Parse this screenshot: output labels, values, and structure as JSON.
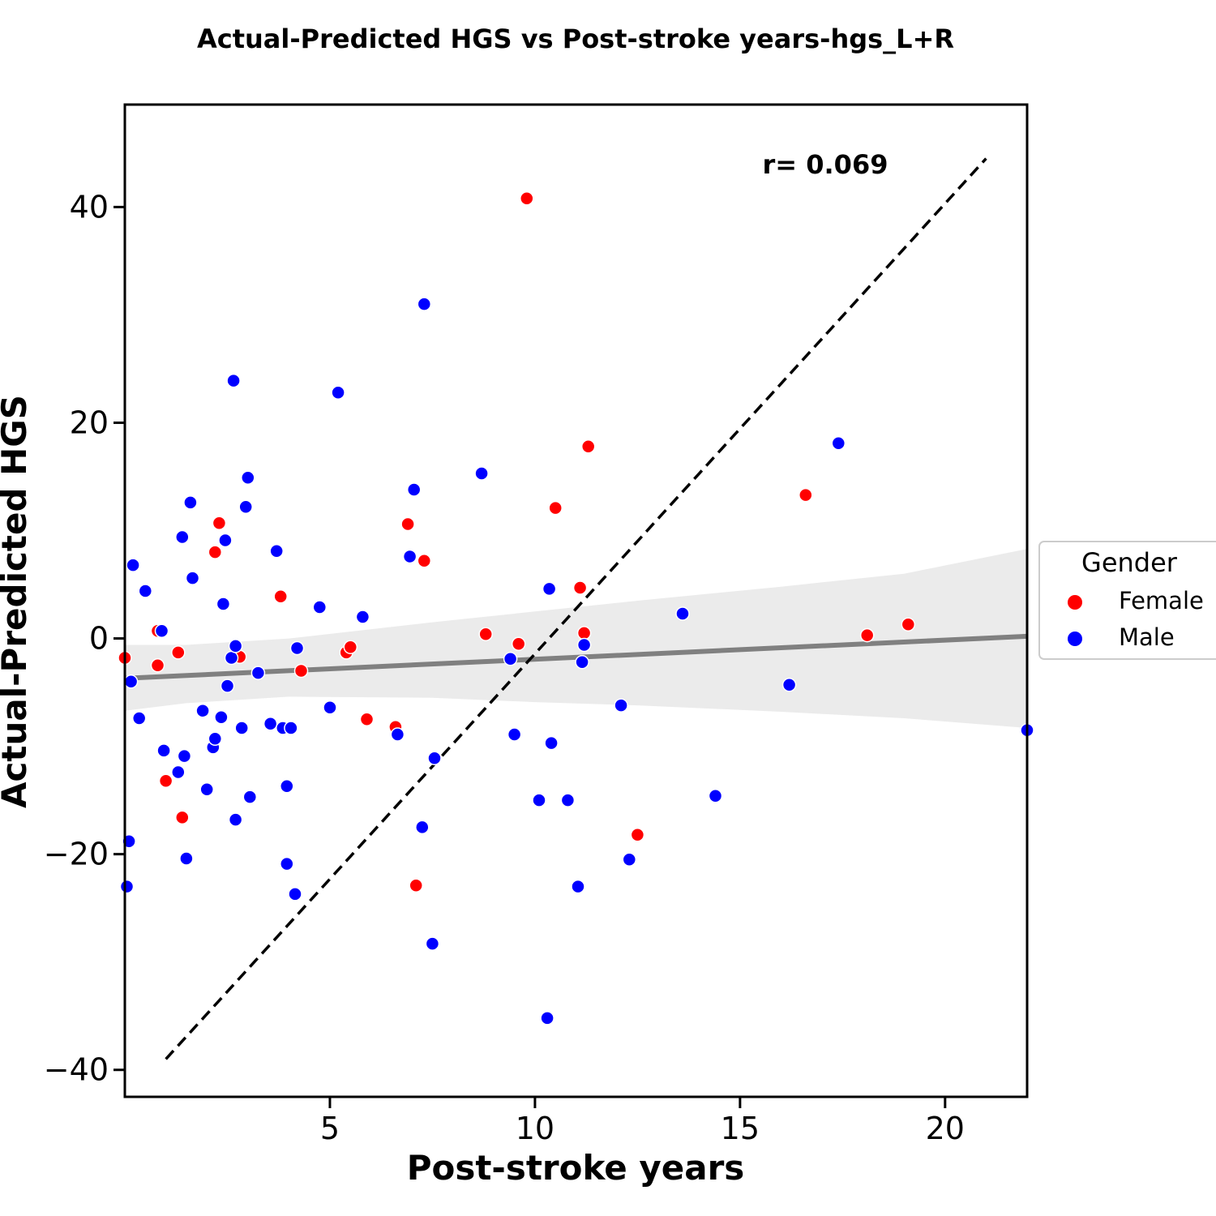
{
  "chart_data": {
    "type": "scatter",
    "title": "Actual-Predicted HGS vs Post-stroke years-hgs_L+R",
    "xlabel": "Post-stroke years",
    "ylabel": "Actual-Predicted HGS",
    "xlim": [
      0.0,
      22.0
    ],
    "ylim": [
      -42.5,
      49.5
    ],
    "xticks": [
      5,
      10,
      15,
      20
    ],
    "yticks": [
      -40,
      -20,
      0,
      20,
      40
    ],
    "ytick_labels": [
      "−40",
      "−20",
      "0",
      "20",
      "40"
    ],
    "xtick_labels": [
      "5",
      "10",
      "15",
      "20"
    ],
    "grid": false,
    "annotation": "r= 0.069",
    "legend": {
      "title": "Gender",
      "position": "right",
      "entries": [
        {
          "name": "Female",
          "color": "#ff0000"
        },
        {
          "name": "Male",
          "color": "#0000ff"
        }
      ]
    },
    "identity_line": {
      "x": [
        1.0,
        21.0
      ],
      "y": [
        -39.0,
        44.5
      ]
    },
    "regression": {
      "x": [
        0.0,
        22.0
      ],
      "y": [
        -3.7,
        0.2
      ],
      "ci_upper": [
        -0.6,
        -0.6,
        0.0,
        1.5,
        2.5,
        3.5,
        4.8,
        6.0,
        8.3
      ],
      "ci_lower": [
        -6.7,
        -6.0,
        -5.4,
        -5.5,
        -5.9,
        -6.2,
        -6.8,
        -7.4,
        -8.3
      ],
      "ci_x": [
        0.0,
        1.5,
        4.0,
        7.5,
        10.0,
        12.5,
        16.0,
        19.0,
        22.0
      ]
    },
    "series": [
      {
        "name": "Female",
        "color": "#ff0000",
        "points": [
          [
            0.0,
            -1.8
          ],
          [
            0.8,
            0.7
          ],
          [
            0.8,
            -2.5
          ],
          [
            1.0,
            -13.2
          ],
          [
            1.3,
            -1.3
          ],
          [
            1.4,
            -16.6
          ],
          [
            2.2,
            8.0
          ],
          [
            2.3,
            10.7
          ],
          [
            2.8,
            -1.7
          ],
          [
            3.8,
            3.9
          ],
          [
            4.3,
            -3.0
          ],
          [
            5.4,
            -1.3
          ],
          [
            5.5,
            -0.8
          ],
          [
            5.9,
            -7.5
          ],
          [
            6.6,
            -8.2
          ],
          [
            6.9,
            10.6
          ],
          [
            7.1,
            -22.9
          ],
          [
            7.3,
            7.2
          ],
          [
            8.8,
            0.4
          ],
          [
            9.6,
            -0.5
          ],
          [
            9.8,
            40.8
          ],
          [
            10.5,
            12.1
          ],
          [
            11.1,
            4.7
          ],
          [
            11.2,
            0.5
          ],
          [
            11.3,
            17.8
          ],
          [
            12.5,
            -18.2
          ],
          [
            16.6,
            13.3
          ],
          [
            18.1,
            0.3
          ],
          [
            19.1,
            1.3
          ]
        ]
      },
      {
        "name": "Male",
        "color": "#0000ff",
        "points": [
          [
            0.05,
            -23.0
          ],
          [
            0.1,
            -18.8
          ],
          [
            0.15,
            -4.0
          ],
          [
            0.2,
            6.8
          ],
          [
            0.35,
            -7.4
          ],
          [
            0.5,
            4.4
          ],
          [
            0.9,
            0.7
          ],
          [
            0.95,
            -10.4
          ],
          [
            1.3,
            -12.4
          ],
          [
            1.4,
            9.4
          ],
          [
            1.45,
            -10.9
          ],
          [
            1.5,
            -20.4
          ],
          [
            1.6,
            12.6
          ],
          [
            1.65,
            5.6
          ],
          [
            1.9,
            -6.7
          ],
          [
            2.0,
            -14.0
          ],
          [
            2.15,
            -10.1
          ],
          [
            2.2,
            -9.3
          ],
          [
            2.35,
            -7.3
          ],
          [
            2.4,
            3.2
          ],
          [
            2.45,
            9.1
          ],
          [
            2.5,
            -4.4
          ],
          [
            2.6,
            -1.8
          ],
          [
            2.65,
            23.9
          ],
          [
            2.7,
            -16.8
          ],
          [
            2.7,
            -0.7
          ],
          [
            2.85,
            -8.3
          ],
          [
            2.95,
            12.2
          ],
          [
            3.0,
            14.9
          ],
          [
            3.05,
            -14.7
          ],
          [
            3.25,
            -3.2
          ],
          [
            3.55,
            -7.9
          ],
          [
            3.7,
            8.1
          ],
          [
            3.85,
            -8.3
          ],
          [
            3.95,
            -13.7
          ],
          [
            3.95,
            -20.9
          ],
          [
            4.05,
            -8.3
          ],
          [
            4.15,
            -23.7
          ],
          [
            4.2,
            -0.9
          ],
          [
            4.75,
            2.9
          ],
          [
            5.0,
            -6.4
          ],
          [
            5.2,
            22.8
          ],
          [
            5.8,
            2.0
          ],
          [
            6.65,
            -8.9
          ],
          [
            6.95,
            7.6
          ],
          [
            7.05,
            13.8
          ],
          [
            7.25,
            -17.5
          ],
          [
            7.3,
            31.0
          ],
          [
            7.5,
            -28.3
          ],
          [
            7.55,
            -11.1
          ],
          [
            8.7,
            15.3
          ],
          [
            9.4,
            -1.9
          ],
          [
            9.5,
            -8.9
          ],
          [
            10.1,
            -15.0
          ],
          [
            10.3,
            -35.2
          ],
          [
            10.35,
            4.6
          ],
          [
            10.4,
            -9.7
          ],
          [
            10.8,
            -15.0
          ],
          [
            11.05,
            -23.0
          ],
          [
            11.15,
            -2.2
          ],
          [
            11.2,
            -0.6
          ],
          [
            12.1,
            -6.2
          ],
          [
            12.3,
            -20.5
          ],
          [
            13.6,
            2.3
          ],
          [
            14.4,
            -14.6
          ],
          [
            16.2,
            -4.3
          ],
          [
            17.4,
            18.1
          ],
          [
            22.0,
            -8.5
          ]
        ]
      }
    ]
  }
}
